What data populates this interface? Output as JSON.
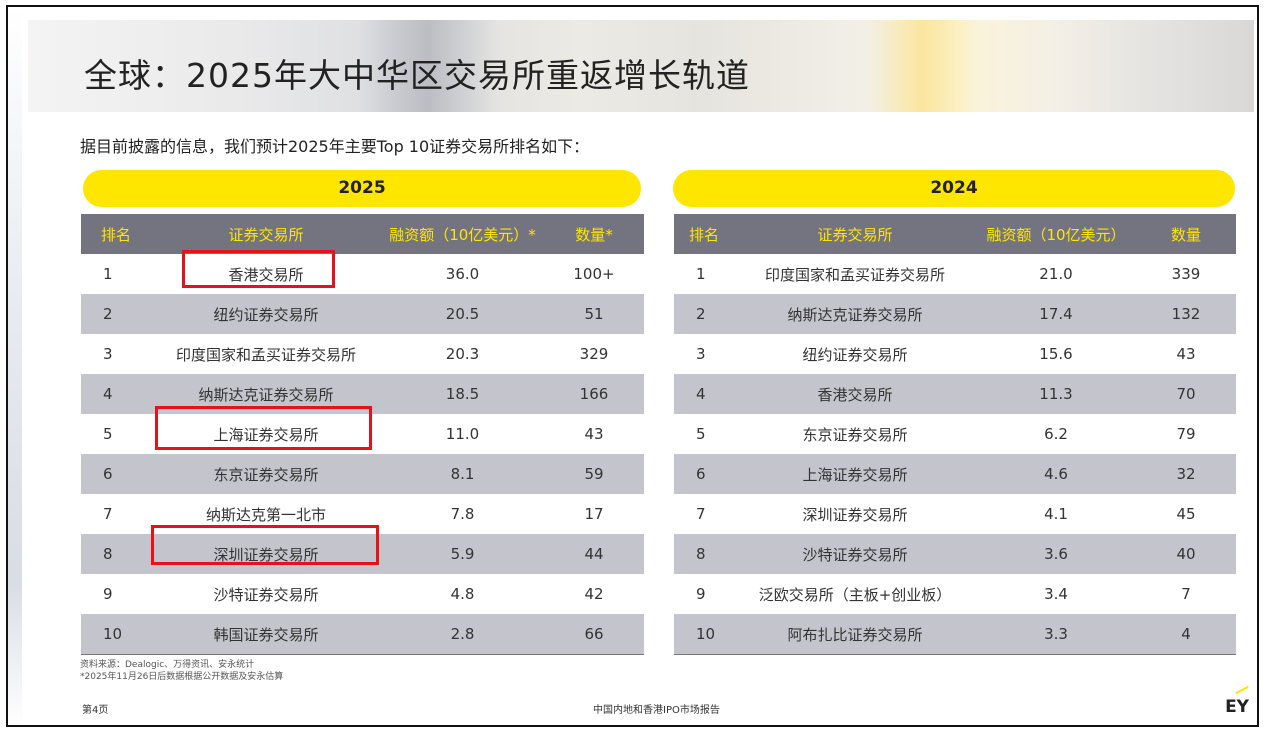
{
  "title": "全球：2025年大中华区交易所重返增长轨道",
  "subtitle": "据目前披露的信息，我们预计2025年主要Top 10证券交易所排名如下：",
  "table_2025": {
    "year": "2025",
    "headers": [
      "排名",
      "证券交易所",
      "融资额（10亿美元）*",
      "数量*"
    ],
    "rows": [
      [
        "1",
        "香港交易所",
        "36.0",
        "100+"
      ],
      [
        "2",
        "纽约证券交易所",
        "20.5",
        "51"
      ],
      [
        "3",
        "印度国家和孟买证券交易所",
        "20.3",
        "329"
      ],
      [
        "4",
        "纳斯达克证券交易所",
        "18.5",
        "166"
      ],
      [
        "5",
        "上海证券交易所",
        "11.0",
        "43"
      ],
      [
        "6",
        "东京证券交易所",
        "8.1",
        "59"
      ],
      [
        "7",
        "纳斯达克第一北市",
        "7.8",
        "17"
      ],
      [
        "8",
        "深圳证券交易所",
        "5.9",
        "44"
      ],
      [
        "9",
        "沙特证券交易所",
        "4.8",
        "42"
      ],
      [
        "10",
        "韩国证券交易所",
        "2.8",
        "66"
      ]
    ]
  },
  "table_2024": {
    "year": "2024",
    "headers": [
      "排名",
      "证券交易所",
      "融资额（10亿美元）",
      "数量"
    ],
    "rows": [
      [
        "1",
        "印度国家和孟买证券交易所",
        "21.0",
        "339"
      ],
      [
        "2",
        "纳斯达克证券交易所",
        "17.4",
        "132"
      ],
      [
        "3",
        "纽约证券交易所",
        "15.6",
        "43"
      ],
      [
        "4",
        "香港交易所",
        "11.3",
        "70"
      ],
      [
        "5",
        "东京证券交易所",
        "6.2",
        "79"
      ],
      [
        "6",
        "上海证券交易所",
        "4.6",
        "32"
      ],
      [
        "7",
        "深圳证券交易所",
        "4.1",
        "45"
      ],
      [
        "8",
        "沙特证券交易所",
        "3.6",
        "40"
      ],
      [
        "9",
        "泛欧交易所（主板+创业板）",
        "3.4",
        "7"
      ],
      [
        "10",
        "阿布扎比证券交易所",
        "3.3",
        "4"
      ]
    ]
  },
  "highlight_color": "#e3121b",
  "accent_color": "#ffe600",
  "notes": {
    "source": "资料来源：Dealogic、万得资讯、安永统计",
    "asterisk": "*2025年11月26日后数据根据公开数据及安永估算"
  },
  "footer": {
    "page": "第4页",
    "report": "中国内地和香港IPO市场报告",
    "logo": "EY"
  }
}
